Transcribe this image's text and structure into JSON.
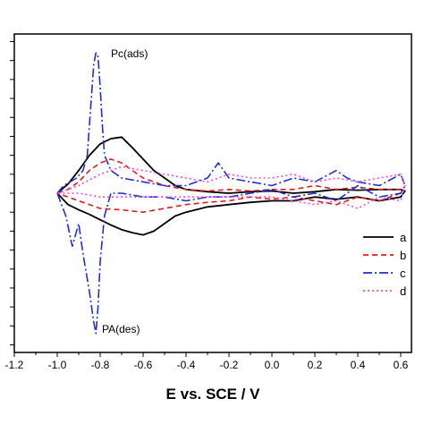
{
  "chart_data": {
    "type": "line",
    "title": "",
    "xlabel": "E vs. SCE / V",
    "ylabel": "",
    "xlim": [
      -1.2,
      0.65
    ],
    "ylim": [
      -2.1,
      2.1
    ],
    "x_ticks": [
      "-1.2",
      "-1.0",
      "-0.8",
      "-0.6",
      "-0.4",
      "-0.2",
      "0.0",
      "0.2",
      "0.4",
      "0.6"
    ],
    "x_tick_values": [
      -1.2,
      -1.0,
      -0.8,
      -0.6,
      -0.4,
      -0.2,
      0.0,
      0.2,
      0.4,
      0.6
    ],
    "y_tick_values": [
      2.0,
      1.75,
      1.5,
      1.25,
      1.0,
      0.75,
      0.5,
      0.25,
      0.0,
      -0.25,
      -0.5,
      -0.75,
      -1.0,
      -1.25,
      -1.5,
      -1.75,
      -2.0
    ],
    "grid": false,
    "legend_position": "right",
    "annotations": [
      {
        "text": "Pc(ads)",
        "x": -0.78,
        "y": 1.9
      },
      {
        "text": "PA(des)",
        "x": -0.82,
        "y": -1.95
      }
    ],
    "series": [
      {
        "name": "a",
        "color": "#000000",
        "dash": "solid",
        "x": [
          -1.0,
          -0.95,
          -0.9,
          -0.85,
          -0.8,
          -0.75,
          -0.7,
          -0.65,
          -0.6,
          -0.55,
          -0.5,
          -0.45,
          -0.4,
          -0.3,
          -0.2,
          -0.1,
          0.0,
          0.1,
          0.2,
          0.3,
          0.4,
          0.5,
          0.6,
          0.62,
          0.6,
          0.5,
          0.4,
          0.3,
          0.2,
          0.1,
          0.0,
          -0.1,
          -0.2,
          -0.3,
          -0.4,
          -0.45,
          -0.5,
          -0.55,
          -0.6,
          -0.65,
          -0.7,
          -0.75,
          -0.8,
          -0.85,
          -0.9,
          -0.95,
          -1.0
        ],
        "y": [
          0.0,
          0.12,
          0.3,
          0.5,
          0.65,
          0.72,
          0.74,
          0.6,
          0.45,
          0.3,
          0.2,
          0.1,
          0.05,
          0.02,
          0.0,
          0.02,
          0.03,
          0.0,
          0.02,
          0.05,
          0.04,
          0.05,
          0.05,
          0.03,
          -0.05,
          -0.1,
          -0.05,
          -0.08,
          -0.05,
          -0.1,
          -0.1,
          -0.12,
          -0.15,
          -0.18,
          -0.25,
          -0.3,
          -0.4,
          -0.5,
          -0.55,
          -0.52,
          -0.48,
          -0.42,
          -0.35,
          -0.28,
          -0.22,
          -0.15,
          0.0
        ]
      },
      {
        "name": "b",
        "color": "#e41a1c",
        "dash": "6,4",
        "x": [
          -1.0,
          -0.95,
          -0.9,
          -0.85,
          -0.8,
          -0.75,
          -0.7,
          -0.6,
          -0.5,
          -0.4,
          -0.3,
          -0.2,
          -0.1,
          0.0,
          0.1,
          0.2,
          0.3,
          0.4,
          0.5,
          0.6,
          0.6,
          0.5,
          0.4,
          0.3,
          0.2,
          0.1,
          0.0,
          -0.1,
          -0.2,
          -0.3,
          -0.4,
          -0.5,
          -0.6,
          -0.7,
          -0.8,
          -0.85,
          -0.9,
          -0.95,
          -1.0
        ],
        "y": [
          0.0,
          0.05,
          0.15,
          0.3,
          0.4,
          0.45,
          0.4,
          0.2,
          0.1,
          0.05,
          0.03,
          0.05,
          0.03,
          0.05,
          0.05,
          0.1,
          0.05,
          0.08,
          0.05,
          0.05,
          0.0,
          -0.1,
          -0.05,
          -0.15,
          -0.1,
          -0.05,
          -0.08,
          -0.05,
          -0.1,
          -0.12,
          -0.15,
          -0.2,
          -0.25,
          -0.22,
          -0.2,
          -0.15,
          -0.1,
          -0.05,
          0.0
        ]
      },
      {
        "name": "c",
        "color": "#1f2fd0",
        "dash": "10,3,2,3",
        "x": [
          -1.0,
          -0.97,
          -0.94,
          -0.91,
          -0.88,
          -0.86,
          -0.85,
          -0.84,
          -0.83,
          -0.82,
          -0.81,
          -0.8,
          -0.79,
          -0.78,
          -0.75,
          -0.7,
          -0.6,
          -0.5,
          -0.4,
          -0.3,
          -0.25,
          -0.2,
          -0.1,
          0.0,
          0.1,
          0.2,
          0.3,
          0.35,
          0.4,
          0.5,
          0.6,
          0.62,
          0.6,
          0.5,
          0.4,
          0.3,
          0.2,
          0.1,
          0.0,
          -0.1,
          -0.2,
          -0.3,
          -0.4,
          -0.5,
          -0.6,
          -0.7,
          -0.75,
          -0.78,
          -0.8,
          -0.81,
          -0.82,
          -0.83,
          -0.85,
          -0.88,
          -0.9,
          -0.93,
          -0.96,
          -1.0
        ],
        "y": [
          0.0,
          0.1,
          0.15,
          0.2,
          0.3,
          0.5,
          0.9,
          1.3,
          1.7,
          1.85,
          1.8,
          1.4,
          0.9,
          0.5,
          0.3,
          0.2,
          0.15,
          0.1,
          0.1,
          0.2,
          0.4,
          0.2,
          0.15,
          0.1,
          0.2,
          0.15,
          0.3,
          0.2,
          0.15,
          0.1,
          0.25,
          0.1,
          0.0,
          -0.05,
          0.1,
          -0.1,
          0.0,
          -0.05,
          0.05,
          0.0,
          -0.05,
          -0.05,
          -0.1,
          -0.05,
          -0.05,
          0.0,
          0.0,
          -0.3,
          -0.9,
          -1.5,
          -1.85,
          -1.7,
          -1.3,
          -0.8,
          -0.4,
          -0.7,
          -0.3,
          0.0
        ]
      },
      {
        "name": "d",
        "color": "#f04ad8",
        "dash": "2,3",
        "x": [
          -1.0,
          -0.9,
          -0.8,
          -0.7,
          -0.6,
          -0.5,
          -0.4,
          -0.3,
          -0.2,
          -0.1,
          0.0,
          0.1,
          0.2,
          0.3,
          0.4,
          0.5,
          0.6,
          0.62,
          0.6,
          0.5,
          0.4,
          0.3,
          0.2,
          0.1,
          0.0,
          -0.2,
          -0.4,
          -0.6,
          -0.8,
          -0.9,
          -1.0
        ],
        "y": [
          0.0,
          0.1,
          0.25,
          0.35,
          0.3,
          0.25,
          0.2,
          0.15,
          0.25,
          0.2,
          0.2,
          0.25,
          0.15,
          0.2,
          0.15,
          0.2,
          0.25,
          0.1,
          -0.1,
          -0.05,
          -0.2,
          -0.1,
          -0.15,
          -0.1,
          -0.05,
          -0.05,
          -0.05,
          -0.05,
          -0.05,
          0.0,
          0.0
        ]
      }
    ]
  }
}
